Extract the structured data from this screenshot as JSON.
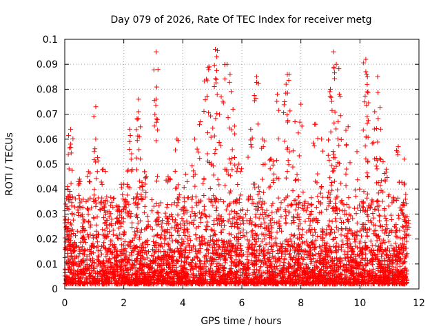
{
  "chart_data": {
    "type": "scatter",
    "title": "Day 079 of 2026, Rate Of TEC Index for receiver metg",
    "xlabel": "GPS time / hours",
    "ylabel": "ROTI / TECUs",
    "xlim": [
      0,
      12
    ],
    "ylim": [
      0,
      0.1
    ],
    "x_ticks": [
      0,
      2,
      4,
      6,
      8,
      10,
      12
    ],
    "x_tick_labels": [
      "0",
      "2",
      "4",
      "6",
      "8",
      "10",
      "12"
    ],
    "y_ticks": [
      0,
      0.01,
      0.02,
      0.03,
      0.04,
      0.05,
      0.06,
      0.07,
      0.08,
      0.09,
      0.1
    ],
    "y_tick_labels": [
      "0",
      "0.01",
      "0.02",
      "0.03",
      "0.04",
      "0.05",
      "0.06",
      "0.07",
      "0.08",
      "0.09",
      "0.1"
    ],
    "grid": true,
    "marker": "+",
    "color": "#ff0000",
    "data_range_x": [
      0,
      11.6
    ],
    "sample_points": [
      {
        "x": 0.05,
        "y": 0.025
      },
      {
        "x": 0.1,
        "y": 0.041
      },
      {
        "x": 0.2,
        "y": 0.064
      },
      {
        "x": 0.2,
        "y": 0.058
      },
      {
        "x": 0.5,
        "y": 0.044
      },
      {
        "x": 0.6,
        "y": 0.029
      },
      {
        "x": 0.8,
        "y": 0.047
      },
      {
        "x": 1.05,
        "y": 0.073
      },
      {
        "x": 1.05,
        "y": 0.06
      },
      {
        "x": 1.3,
        "y": 0.048
      },
      {
        "x": 1.5,
        "y": 0.031
      },
      {
        "x": 1.8,
        "y": 0.033
      },
      {
        "x": 2.0,
        "y": 0.042
      },
      {
        "x": 2.2,
        "y": 0.064
      },
      {
        "x": 2.2,
        "y": 0.059
      },
      {
        "x": 2.5,
        "y": 0.076
      },
      {
        "x": 2.5,
        "y": 0.071
      },
      {
        "x": 2.7,
        "y": 0.047
      },
      {
        "x": 3.1,
        "y": 0.095
      },
      {
        "x": 3.1,
        "y": 0.076
      },
      {
        "x": 3.5,
        "y": 0.045
      },
      {
        "x": 3.8,
        "y": 0.06
      },
      {
        "x": 4.1,
        "y": 0.046
      },
      {
        "x": 4.4,
        "y": 0.06
      },
      {
        "x": 4.6,
        "y": 0.067
      },
      {
        "x": 4.8,
        "y": 0.084
      },
      {
        "x": 4.9,
        "y": 0.089
      },
      {
        "x": 5.1,
        "y": 0.096
      },
      {
        "x": 5.15,
        "y": 0.093
      },
      {
        "x": 5.3,
        "y": 0.077
      },
      {
        "x": 5.5,
        "y": 0.09
      },
      {
        "x": 5.6,
        "y": 0.086
      },
      {
        "x": 5.7,
        "y": 0.072
      },
      {
        "x": 5.9,
        "y": 0.05
      },
      {
        "x": 6.3,
        "y": 0.064
      },
      {
        "x": 6.5,
        "y": 0.085
      },
      {
        "x": 6.7,
        "y": 0.06
      },
      {
        "x": 7.0,
        "y": 0.052
      },
      {
        "x": 7.2,
        "y": 0.078
      },
      {
        "x": 7.5,
        "y": 0.082
      },
      {
        "x": 7.6,
        "y": 0.086
      },
      {
        "x": 7.8,
        "y": 0.067
      },
      {
        "x": 8.0,
        "y": 0.074
      },
      {
        "x": 8.5,
        "y": 0.066
      },
      {
        "x": 8.7,
        "y": 0.06
      },
      {
        "x": 9.0,
        "y": 0.08
      },
      {
        "x": 9.1,
        "y": 0.095
      },
      {
        "x": 9.2,
        "y": 0.09
      },
      {
        "x": 9.3,
        "y": 0.078
      },
      {
        "x": 9.6,
        "y": 0.065
      },
      {
        "x": 9.9,
        "y": 0.055
      },
      {
        "x": 10.2,
        "y": 0.092
      },
      {
        "x": 10.2,
        "y": 0.087
      },
      {
        "x": 10.25,
        "y": 0.079
      },
      {
        "x": 10.5,
        "y": 0.071
      },
      {
        "x": 10.6,
        "y": 0.085
      },
      {
        "x": 10.7,
        "y": 0.064
      },
      {
        "x": 10.9,
        "y": 0.048
      },
      {
        "x": 11.3,
        "y": 0.057
      },
      {
        "x": 11.5,
        "y": 0.052
      },
      {
        "x": 11.6,
        "y": 0.029
      }
    ],
    "dense_band": {
      "y_min": 0.002,
      "y_max": 0.02,
      "y_mode": 0.007
    }
  }
}
